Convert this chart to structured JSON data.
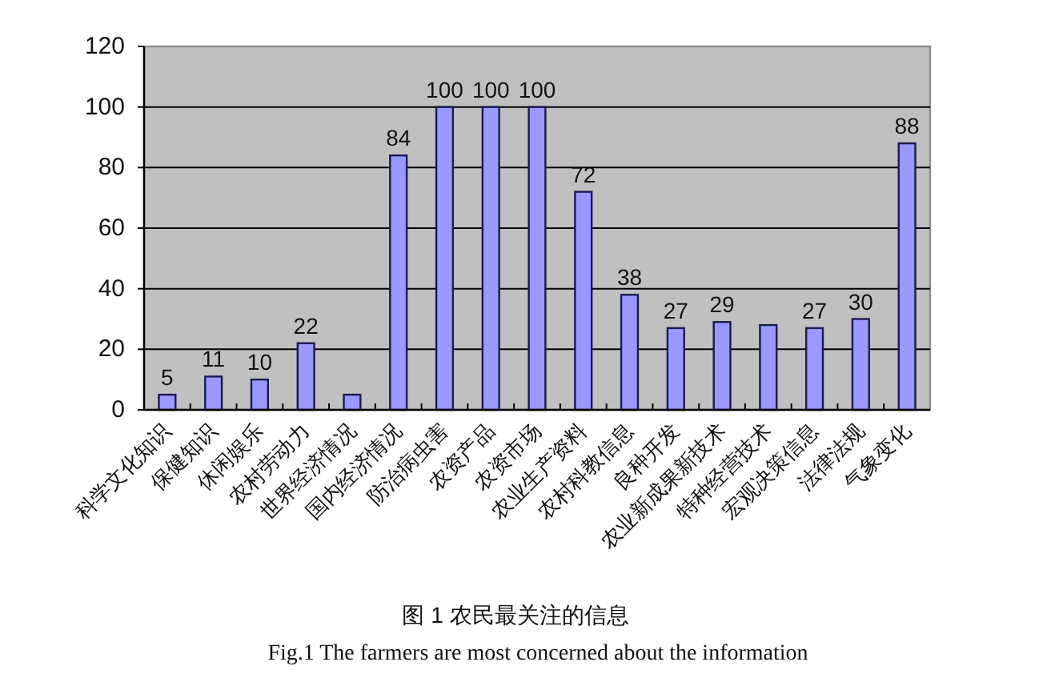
{
  "chart_data": {
    "type": "bar",
    "categories": [
      "科学文化知识",
      "保健知识",
      "休闲娱乐",
      "农村劳动力",
      "世界经济情况",
      "国内经济情况",
      "防治病虫害",
      "农资产品",
      "农资市场",
      "农业生产资料",
      "农村科教信息",
      "良种开发",
      "农业新成果新技术",
      "特种经营技术",
      "宏观决策信息",
      "法律法规",
      "气象变化"
    ],
    "values": [
      5,
      11,
      10,
      22,
      5,
      84,
      100,
      100,
      100,
      72,
      38,
      27,
      29,
      28,
      27,
      30,
      88
    ],
    "value_labels": [
      "5",
      "11",
      "10",
      "22",
      null,
      "84",
      "100",
      "100",
      "100",
      "72",
      "38",
      "27",
      "29",
      null,
      "27",
      "30",
      "88"
    ],
    "color": "#9999ff",
    "ylim": [
      0,
      120
    ],
    "yticks": [
      0,
      20,
      40,
      60,
      80,
      100,
      120
    ],
    "grid": "y",
    "annotations": [
      "图 1 农民最关注的信息",
      "Fig.1 The farmers are most concerned about the information"
    ]
  }
}
